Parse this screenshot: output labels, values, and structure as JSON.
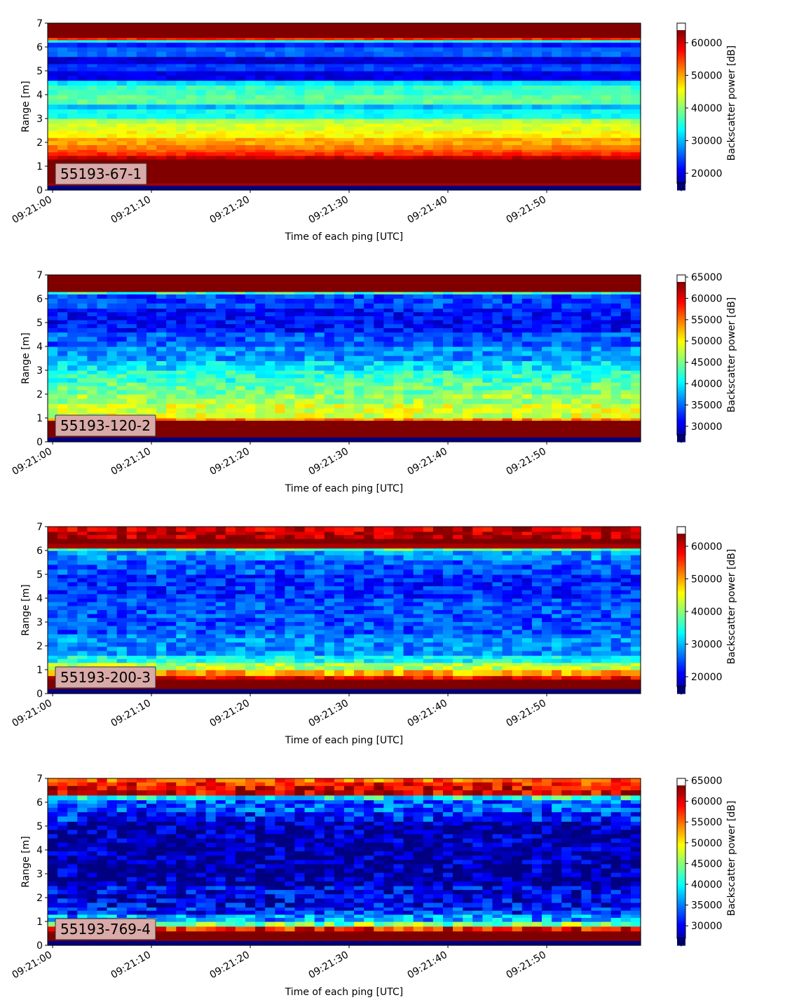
{
  "colors": {
    "background": "#ffffff",
    "axis": "#000000",
    "badge_fill": "#d9aaa8",
    "colormap": "jet"
  },
  "chart_data": [
    {
      "type": "heatmap",
      "label_box": "55193-67-1",
      "xlabel": "Time of each ping [UTC]",
      "ylabel": "Range [m]",
      "colorbar_label": "Backscatter power [dB]",
      "x_ticks": [
        "09:21:00",
        "09:21:10",
        "09:21:20",
        "09:21:30",
        "09:21:40",
        "09:21:50"
      ],
      "x_range_seconds": [
        -0.5,
        59.5
      ],
      "y_ticks": [
        0,
        1,
        2,
        3,
        4,
        5,
        6,
        7
      ],
      "ylim": [
        0,
        7
      ],
      "colorbar_ticks": [
        20000,
        30000,
        40000,
        50000,
        60000
      ],
      "colorbar_range": [
        17000,
        66000
      ],
      "colorbar_extend": "min",
      "grid": false,
      "n_pings": 60,
      "range_profile": [
        [
          0.0,
          0.2,
          17000
        ],
        [
          0.2,
          0.3,
          64000
        ],
        [
          0.3,
          1.3,
          66000
        ],
        [
          1.3,
          1.45,
          63000
        ],
        [
          1.45,
          1.6,
          58000
        ],
        [
          1.6,
          1.7,
          56000
        ],
        [
          1.7,
          1.9,
          54000
        ],
        [
          1.9,
          2.2,
          52000
        ],
        [
          2.2,
          2.5,
          48000
        ],
        [
          2.5,
          2.8,
          46000
        ],
        [
          2.8,
          3.0,
          44000
        ],
        [
          3.0,
          3.4,
          36000
        ],
        [
          3.4,
          3.6,
          32000
        ],
        [
          3.6,
          4.0,
          40000
        ],
        [
          4.0,
          4.4,
          38000
        ],
        [
          4.4,
          4.6,
          34000
        ],
        [
          4.6,
          5.0,
          22000
        ],
        [
          5.0,
          5.3,
          26000
        ],
        [
          5.3,
          5.6,
          21000
        ],
        [
          5.6,
          6.0,
          28000
        ],
        [
          6.0,
          6.2,
          24000
        ],
        [
          6.2,
          6.3,
          36000
        ],
        [
          6.3,
          6.4,
          58000
        ],
        [
          6.4,
          7.0,
          66000
        ]
      ]
    },
    {
      "type": "heatmap",
      "label_box": "55193-120-2",
      "xlabel": "Time of each ping [UTC]",
      "ylabel": "Range [m]",
      "colorbar_label": "Backscatter power [dB]",
      "x_ticks": [
        "09:21:00",
        "09:21:10",
        "09:21:20",
        "09:21:30",
        "09:21:40",
        "09:21:50"
      ],
      "x_range_seconds": [
        -0.5,
        59.5
      ],
      "y_ticks": [
        0,
        1,
        2,
        3,
        4,
        5,
        6,
        7
      ],
      "ylim": [
        0,
        7
      ],
      "colorbar_ticks": [
        30000,
        35000,
        40000,
        45000,
        50000,
        55000,
        60000,
        65000
      ],
      "colorbar_range": [
        28000,
        65500
      ],
      "colorbar_extend": "min",
      "grid": false,
      "n_pings": 60,
      "range_profile": [
        [
          0.0,
          0.2,
          28000
        ],
        [
          0.2,
          0.9,
          65500
        ],
        [
          0.9,
          1.0,
          56000
        ],
        [
          1.0,
          1.6,
          50000
        ],
        [
          1.6,
          2.0,
          48000
        ],
        [
          2.0,
          2.5,
          46000
        ],
        [
          2.5,
          3.0,
          44000
        ],
        [
          3.0,
          3.4,
          41000
        ],
        [
          3.4,
          4.0,
          38000
        ],
        [
          4.0,
          4.6,
          36000
        ],
        [
          4.6,
          5.6,
          33000
        ],
        [
          5.6,
          6.2,
          35000
        ],
        [
          6.2,
          6.3,
          44000
        ],
        [
          6.3,
          7.0,
          65500
        ]
      ]
    },
    {
      "type": "heatmap",
      "label_box": "55193-200-3",
      "xlabel": "Time of each ping [UTC]",
      "ylabel": "Range [m]",
      "colorbar_label": "Backscatter power [dB]",
      "x_ticks": [
        "09:21:00",
        "09:21:10",
        "09:21:20",
        "09:21:30",
        "09:21:40",
        "09:21:50"
      ],
      "x_range_seconds": [
        -0.5,
        59.5
      ],
      "y_ticks": [
        0,
        1,
        2,
        3,
        4,
        5,
        6,
        7
      ],
      "ylim": [
        0,
        7
      ],
      "colorbar_ticks": [
        20000,
        30000,
        40000,
        50000,
        60000
      ],
      "colorbar_range": [
        17000,
        66000
      ],
      "colorbar_extend": "min",
      "grid": false,
      "n_pings": 60,
      "range_profile": [
        [
          0.0,
          0.2,
          17000
        ],
        [
          0.2,
          0.6,
          66000
        ],
        [
          0.6,
          0.75,
          60000
        ],
        [
          0.75,
          1.0,
          52000
        ],
        [
          1.0,
          1.3,
          44000
        ],
        [
          1.3,
          1.6,
          36000
        ],
        [
          1.6,
          2.5,
          30000
        ],
        [
          2.5,
          4.0,
          27000
        ],
        [
          4.0,
          5.0,
          25000
        ],
        [
          5.0,
          5.6,
          27000
        ],
        [
          5.6,
          6.0,
          30000
        ],
        [
          6.0,
          6.1,
          40000
        ],
        [
          6.1,
          6.3,
          64000
        ],
        [
          6.3,
          6.5,
          66000
        ],
        [
          6.5,
          6.8,
          63000
        ],
        [
          6.8,
          7.0,
          62000
        ]
      ]
    },
    {
      "type": "heatmap",
      "label_box": "55193-769-4",
      "xlabel": "Time of each ping [UTC]",
      "ylabel": "Range [m]",
      "colorbar_label": "Backscatter power [dB]",
      "x_ticks": [
        "09:21:00",
        "09:21:10",
        "09:21:20",
        "09:21:30",
        "09:21:40",
        "09:21:50"
      ],
      "x_range_seconds": [
        -0.5,
        59.5
      ],
      "y_ticks": [
        0,
        1,
        2,
        3,
        4,
        5,
        6,
        7
      ],
      "ylim": [
        0,
        7
      ],
      "colorbar_ticks": [
        30000,
        35000,
        40000,
        45000,
        50000,
        55000,
        60000,
        65000
      ],
      "colorbar_range": [
        27000,
        65500
      ],
      "colorbar_extend": "min",
      "grid": false,
      "n_pings": 60,
      "range_profile": [
        [
          0.0,
          0.2,
          27000
        ],
        [
          0.2,
          0.6,
          65500
        ],
        [
          0.6,
          0.8,
          60000
        ],
        [
          0.8,
          1.0,
          46000
        ],
        [
          1.0,
          1.3,
          38000
        ],
        [
          1.3,
          1.6,
          33000
        ],
        [
          1.6,
          2.5,
          31000
        ],
        [
          2.5,
          5.2,
          28500
        ],
        [
          5.2,
          5.6,
          33000
        ],
        [
          5.6,
          6.1,
          35000
        ],
        [
          6.1,
          6.3,
          42000
        ],
        [
          6.3,
          6.7,
          62000
        ],
        [
          6.7,
          6.85,
          60000
        ],
        [
          6.85,
          7.0,
          57000
        ]
      ]
    }
  ]
}
